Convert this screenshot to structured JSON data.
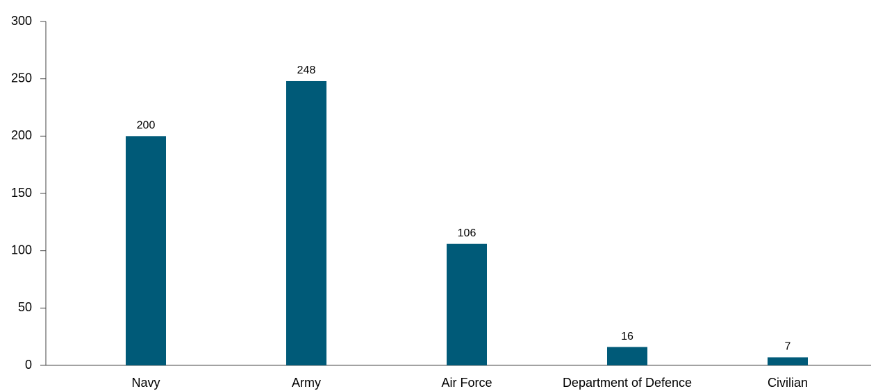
{
  "chart_data": {
    "type": "bar",
    "categories": [
      "Navy",
      "Army",
      "Air Force",
      "Department of Defence",
      "Civilian"
    ],
    "values": [
      200,
      248,
      106,
      16,
      7
    ],
    "color": "#005a78",
    "ylim": [
      0,
      300
    ],
    "yticks": [
      0,
      50,
      100,
      150,
      200,
      250,
      300
    ],
    "grid": false
  }
}
